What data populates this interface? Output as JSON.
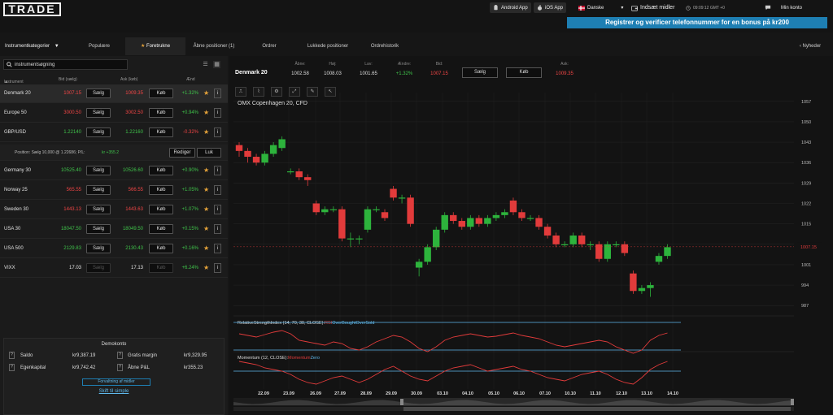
{
  "header": {
    "logo": "TRADE",
    "android_label": "Android App",
    "ios_label": "iOS App",
    "language": "Danske",
    "deposit_label": "Indsæt midler",
    "clock": "09:09:12 GMT +0",
    "account_label": "Min konto",
    "promo": "Registrer og verificer telefonnummer for en bonus på kr200"
  },
  "nav": {
    "categories": "Instrumentkategorier",
    "tabs": [
      "Populære",
      "Foretrukne",
      "Åbne positioner (1)",
      "Ordrer",
      "Lukkede positioner",
      "Ordrehistorik"
    ],
    "news": "Nyheder"
  },
  "left": {
    "search_placeholder": "instrumentsøgning",
    "col_instrument": "Instrument",
    "col_bid": "Bid (sælg)",
    "col_ask": "Ask (køb)",
    "col_change": "Ænd",
    "sell_label": "Sælg",
    "buy_label": "Køb",
    "rows": [
      {
        "name": "Denmark 20",
        "bid": "1007.15",
        "ask": "1009.35",
        "change": "+1.32%",
        "dir": "red",
        "cdir": "green"
      },
      {
        "name": "Europe 50",
        "bid": "3000.50",
        "ask": "3002.50",
        "change": "+0.94%",
        "dir": "red",
        "cdir": "green"
      },
      {
        "name": "GBP/USD",
        "bid": "1.22140",
        "ask": "1.22160",
        "change": "-0.32%",
        "dir": "green",
        "cdir": "red"
      },
      {
        "name": "Germany 30",
        "bid": "10525.40",
        "ask": "10526.60",
        "change": "+0.90%",
        "dir": "green",
        "cdir": "green"
      },
      {
        "name": "Norway 25",
        "bid": "565.55",
        "ask": "566.55",
        "change": "+1.05%",
        "dir": "red",
        "cdir": "green"
      },
      {
        "name": "Sweden 30",
        "bid": "1443.13",
        "ask": "1443.63",
        "change": "+1.07%",
        "dir": "red",
        "cdir": "green"
      },
      {
        "name": "USA 30",
        "bid": "18047.50",
        "ask": "18049.50",
        "change": "+0.15%",
        "dir": "green",
        "cdir": "green"
      },
      {
        "name": "USA 500",
        "bid": "2129.83",
        "ask": "2130.43",
        "change": "+0.16%",
        "dir": "green",
        "cdir": "green"
      },
      {
        "name": "VIXX",
        "bid": "17.03",
        "ask": "17.13",
        "change": "+6.24%",
        "dir": "gray",
        "cdir": "green"
      }
    ],
    "position": {
      "text": "Position: Sælg   10,000 @ 1.22686;  P/L:",
      "pl": "kr +355.2",
      "edit": "Rediger",
      "close": "Luk"
    },
    "demo": {
      "title": "Demokonto",
      "balance_label": "Saldo",
      "balance": "kr9,387.19",
      "free_margin_label": "Gratis margin",
      "free_margin": "kr9,329.95",
      "equity_label": "Egenkapital",
      "equity": "kr9,742.42",
      "open_pl_label": "Åbne P&L",
      "open_pl": "kr355.23",
      "manage_funds": "Forvaltning af midler",
      "simple": "Skift til simple"
    }
  },
  "quote": {
    "name": "Denmark 20",
    "open_label": "Åbne:",
    "open": "1002.58",
    "high_label": "Høj:",
    "high": "1008.03",
    "low_label": "Lav:",
    "low": "1001.65",
    "change_label": "Ændre:",
    "change": "+1.32%",
    "bid_label": "Bid:",
    "bid": "1007.15",
    "ask_label": "Ask:",
    "ask": "1009.35",
    "sell": "Sælg",
    "buy": "Køb"
  },
  "chart_data": {
    "type": "candlestick",
    "title": "OMX Copenhagen 20, CFD",
    "y_ticks": [
      987,
      994,
      1001,
      1008,
      1015,
      1022,
      1029,
      1036,
      1043,
      1050,
      1057
    ],
    "ylim": [
      984,
      1060
    ],
    "current_price": "1007.15",
    "x_labels": [
      "22.09",
      "23.09",
      "26.09",
      "27.09",
      "28.09",
      "29.09",
      "30.09",
      "03.10",
      "04.10",
      "05.10",
      "06.10",
      "07.10",
      "10.10",
      "11.10",
      "12.10",
      "13.10",
      "14.10"
    ],
    "candles": [
      [
        1042,
        1040,
        1043,
        1038
      ],
      [
        1040,
        1038,
        1041,
        1036
      ],
      [
        1038,
        1036,
        1039,
        1035
      ],
      [
        1036,
        1039,
        1040,
        1035
      ],
      [
        1039,
        1042,
        1043,
        1038
      ],
      [
        1041,
        1044,
        1045,
        1040
      ],
      [
        1033,
        1033,
        1034,
        1032
      ],
      [
        1033,
        1031,
        1034,
        1030
      ],
      [
        1031,
        1030,
        1032,
        1028
      ],
      [
        1022,
        1019,
        1023,
        1018
      ],
      [
        1019,
        1020,
        1021,
        1018
      ],
      [
        1020,
        1020,
        1021,
        1019
      ],
      [
        1020,
        1010,
        1021,
        1009
      ],
      [
        1010,
        1010,
        1012,
        1007
      ],
      [
        1010,
        1010,
        1011,
        1008
      ],
      [
        1013,
        1020,
        1021,
        1012
      ],
      [
        1020,
        1020,
        1021,
        1019
      ],
      [
        1019,
        1017,
        1020,
        1016
      ],
      [
        1027,
        1024,
        1028,
        1023
      ],
      [
        1024,
        1024,
        1025,
        1022
      ],
      [
        1024,
        1015,
        1025,
        1014
      ],
      [
        1000,
        1002,
        1003,
        997
      ],
      [
        1002,
        1007,
        1008,
        1001
      ],
      [
        1007,
        1013,
        1014,
        1006
      ],
      [
        1013,
        1018,
        1019,
        1012
      ],
      [
        1018,
        1016,
        1019,
        1015
      ],
      [
        1016,
        1014,
        1017,
        1013
      ],
      [
        1014,
        1017,
        1018,
        1013
      ],
      [
        1017,
        1015,
        1018,
        1014
      ],
      [
        1015,
        1017,
        1018,
        1014
      ],
      [
        1017,
        1018,
        1019,
        1016
      ],
      [
        1018,
        1019,
        1020,
        1017
      ],
      [
        1023,
        1019,
        1024,
        1018
      ],
      [
        1019,
        1017,
        1020,
        1016
      ],
      [
        1017,
        1017,
        1018,
        1016
      ],
      [
        1017,
        1014,
        1018,
        1013
      ],
      [
        1014,
        1011,
        1015,
        1010
      ],
      [
        1011,
        1008,
        1012,
        1007
      ],
      [
        1008,
        1008,
        1009,
        1007
      ],
      [
        1008,
        1011,
        1012,
        1007
      ],
      [
        1011,
        1008,
        1012,
        1007
      ],
      [
        1008,
        1008,
        1009,
        1006
      ],
      [
        1008,
        1003,
        1009,
        1002
      ],
      [
        1003,
        1008,
        1009,
        1002
      ],
      [
        1008,
        1008,
        1009,
        1007
      ],
      [
        1008,
        1005,
        1009,
        1004
      ],
      [
        998,
        992,
        999,
        991
      ],
      [
        992,
        993,
        994,
        991
      ],
      [
        993,
        994,
        995,
        990
      ],
      [
        1002,
        1004,
        1005,
        1001
      ],
      [
        1004,
        1007,
        1008,
        1003
      ]
    ],
    "indicators": [
      {
        "name": "RelativeStrengthIndex (14, 70, 30, CLOSE):",
        "series": [
          "RSI",
          "OverBoughtOverSold"
        ],
        "colors": [
          "#e23b3b",
          "#5fb9ec"
        ]
      },
      {
        "name": "Momentum (12, CLOSE):",
        "series": [
          "Momentum",
          "Zero"
        ],
        "colors": [
          "#e23b3b",
          "#5fb9ec"
        ]
      }
    ],
    "colors": {
      "up": "#2db33c",
      "down": "#e23b3b"
    }
  }
}
